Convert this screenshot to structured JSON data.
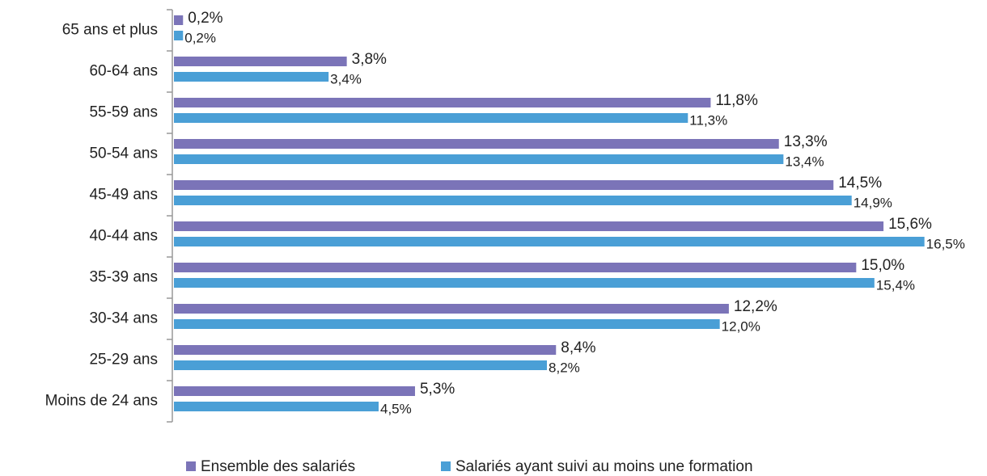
{
  "chart_data": {
    "type": "hbar",
    "categories": [
      "65 ans et plus",
      "60-64 ans",
      "55-59 ans",
      "50-54 ans",
      "45-49 ans",
      "40-44 ans",
      "35-39 ans",
      "30-34 ans",
      "25-29 ans",
      "Moins de 24 ans"
    ],
    "series": [
      {
        "name": "Ensemble des salariés",
        "color": "#7b74b8",
        "values": [
          0.2,
          3.8,
          11.8,
          13.3,
          14.5,
          15.6,
          15.0,
          12.2,
          8.4,
          5.3
        ],
        "value_labels": [
          "0,2%",
          "3,8%",
          "11,8%",
          "13,3%",
          "14,5%",
          "15,6%",
          "15,0%",
          "12,2%",
          "8,4%",
          "5,3%"
        ]
      },
      {
        "name": "Salariés ayant suivi au moins une formation",
        "color": "#4a9fd6",
        "values": [
          0.2,
          3.4,
          11.3,
          13.4,
          14.9,
          16.5,
          15.4,
          12.0,
          8.2,
          4.5
        ],
        "value_labels": [
          "0,2%",
          "3,4%",
          "11,3%",
          "13,4%",
          "14,9%",
          "16,5%",
          "15,4%",
          "12,0%",
          "8,2%",
          "4,5%"
        ]
      }
    ],
    "xlim": [
      0,
      18
    ],
    "legend": "bottom"
  }
}
